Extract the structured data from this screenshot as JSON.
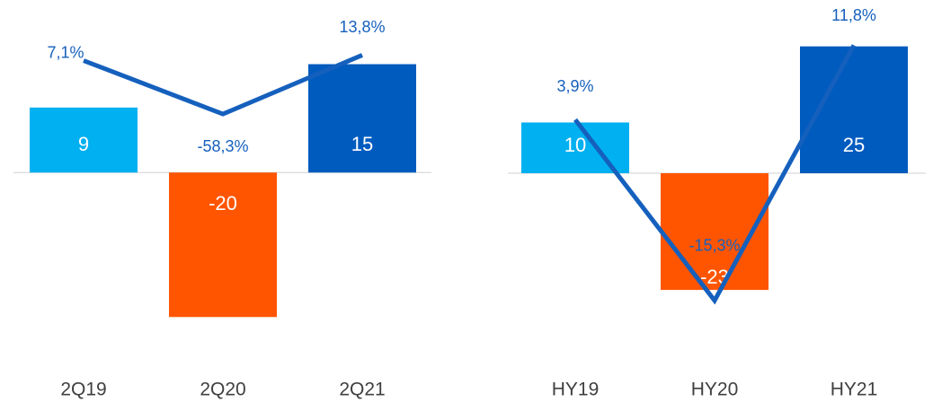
{
  "chart_data": [
    {
      "type": "bar",
      "categories": [
        "2Q19",
        "2Q20",
        "2Q21"
      ],
      "values": [
        9,
        -20,
        15
      ],
      "colors": [
        "#00b0f0",
        "#ff5500",
        "#005bbf"
      ],
      "ylim": [
        -25.8,
        21.4
      ],
      "line": {
        "values": [
          7.1,
          -58.3,
          13.8
        ],
        "value_labels": [
          "7,1%",
          "-58,3%",
          "13,8%"
        ],
        "color": "#1560bd",
        "axis": "y2"
      },
      "y2lim": [
        -358,
        59.3
      ]
    },
    {
      "type": "bar",
      "categories": [
        "HY19",
        "HY20",
        "HY21"
      ],
      "values": [
        10,
        -23,
        25
      ],
      "colors": [
        "#00b0f0",
        "#ff5500",
        "#005bbf"
      ],
      "ylim": [
        -36.6,
        30.6
      ],
      "line": {
        "values": [
          3.9,
          -15.3,
          11.8
        ],
        "value_labels": [
          "3,9%",
          "-15,3%",
          "11,8%"
        ],
        "color": "#1560bd",
        "axis": "y2"
      },
      "y2lim": [
        -21.5,
        14.7
      ]
    }
  ]
}
